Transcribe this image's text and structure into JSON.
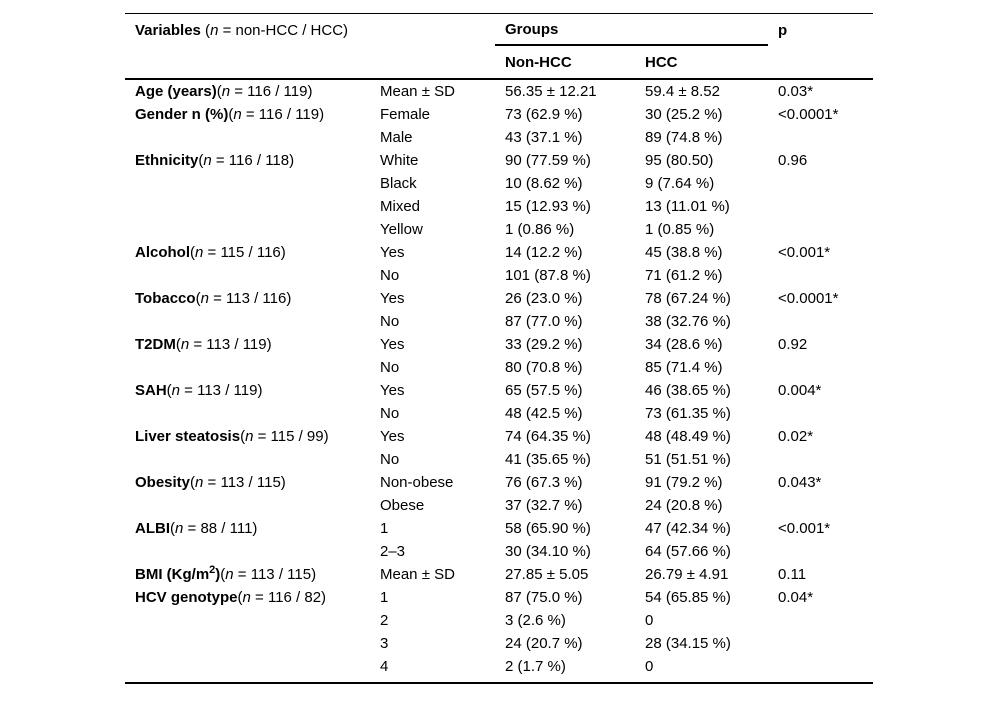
{
  "fmt": {
    "open": "(",
    "n": "n"
  },
  "header": {
    "variables_bold": "Variables",
    "variables_open": " (",
    "n_char": "n",
    "variables_rest": " = non-HCC / HCC)",
    "groups": "Groups",
    "non_hcc": "Non-HCC",
    "hcc": "HCC",
    "p": "p"
  },
  "table": {
    "rows": [
      {
        "label": "Age (years)",
        "n_rest": " = 116 / 119)",
        "cat": "Mean ± SD",
        "nonhcc": "56.35 ± 12.21",
        "hcc": "59.4 ± 8.52",
        "p": "0.03*"
      },
      {
        "label": "Gender n (%)",
        "n_rest": " = 116 / 119)",
        "cat": "Female",
        "nonhcc": "73 (62.9 %)",
        "hcc": "30 (25.2 %)",
        "p": "<0.0001*"
      },
      {
        "cat": "Male",
        "nonhcc": "43 (37.1 %)",
        "hcc": "89 (74.8 %)"
      },
      {
        "label": "Ethnicity",
        "n_rest": " = 116 / 118)",
        "cat": "White",
        "nonhcc": "90 (77.59 %)",
        "hcc": "95 (80.50)",
        "p": "0.96"
      },
      {
        "cat": "Black",
        "nonhcc": "10 (8.62 %)",
        "hcc": "9 (7.64 %)"
      },
      {
        "cat": "Mixed",
        "nonhcc": "15 (12.93 %)",
        "hcc": "13 (11.01 %)"
      },
      {
        "cat": "Yellow",
        "nonhcc": "1 (0.86 %)",
        "hcc": "1 (0.85 %)"
      },
      {
        "label": "Alcohol",
        "n_rest": " = 115 / 116)",
        "cat": "Yes",
        "nonhcc": "14 (12.2 %)",
        "hcc": "45 (38.8 %)",
        "p": "<0.001*"
      },
      {
        "cat": "No",
        "nonhcc": "101 (87.8 %)",
        "hcc": "71 (61.2 %)"
      },
      {
        "label": "Tobacco",
        "n_rest": " = 113 / 116)",
        "cat": "Yes",
        "nonhcc": "26 (23.0 %)",
        "hcc": "78 (67.24 %)",
        "p": "<0.0001*"
      },
      {
        "cat": "No",
        "nonhcc": "87 (77.0 %)",
        "hcc": "38 (32.76 %)"
      },
      {
        "label": "T2DM",
        "n_rest": " = 113 / 119)",
        "cat": "Yes",
        "nonhcc": "33 (29.2 %)",
        "hcc": "34 (28.6 %)",
        "p": "0.92"
      },
      {
        "cat": "No",
        "nonhcc": "80 (70.8 %)",
        "hcc": "85 (71.4 %)"
      },
      {
        "label": "SAH",
        "n_rest": " = 113 / 119)",
        "cat": "Yes",
        "nonhcc": "65 (57.5 %)",
        "hcc": "46 (38.65 %)",
        "p": "0.004*"
      },
      {
        "cat": "No",
        "nonhcc": "48 (42.5 %)",
        "hcc": "73 (61.35 %)"
      },
      {
        "label": "Liver steatosis",
        "n_rest": " = 115 / 99)",
        "cat": "Yes",
        "nonhcc": "74 (64.35 %)",
        "hcc": "48 (48.49 %)",
        "p": "0.02*"
      },
      {
        "cat": "No",
        "nonhcc": "41 (35.65 %)",
        "hcc": "51 (51.51 %)"
      },
      {
        "label": "Obesity",
        "n_rest": " = 113 / 115)",
        "cat": "Non-obese",
        "nonhcc": "76 (67.3 %)",
        "hcc": "91 (79.2 %)",
        "p": "0.043*"
      },
      {
        "cat": "Obese",
        "nonhcc": "37 (32.7 %)",
        "hcc": "24 (20.8 %)"
      },
      {
        "label": "ALBI",
        "n_rest": " = 88 / 111)",
        "cat": "1",
        "nonhcc": "58 (65.90 %)",
        "hcc": "47 (42.34 %)",
        "p": "<0.001*"
      },
      {
        "cat": "2–3",
        "nonhcc": "30 (34.10 %)",
        "hcc": "64 (57.66 %)"
      },
      {
        "label_pre": "BMI (Kg/m",
        "label_sup": "2",
        "label_post": ")",
        "n_rest": " = 113 / 115)",
        "cat": "Mean ± SD",
        "nonhcc": "27.85 ± 5.05",
        "hcc": "26.79 ± 4.91",
        "p": "0.11"
      },
      {
        "label": "HCV genotype",
        "n_rest": " = 116 / 82)",
        "cat": "1",
        "nonhcc": "87 (75.0 %)",
        "hcc": "54 (65.85 %)",
        "p": "0.04*"
      },
      {
        "cat": "2",
        "nonhcc": "3 (2.6 %)",
        "hcc": "0"
      },
      {
        "cat": "3",
        "nonhcc": "24 (20.7 %)",
        "hcc": "28 (34.15 %)"
      },
      {
        "cat": "4",
        "nonhcc": "2 (1.7 %)",
        "hcc": "0"
      }
    ]
  }
}
